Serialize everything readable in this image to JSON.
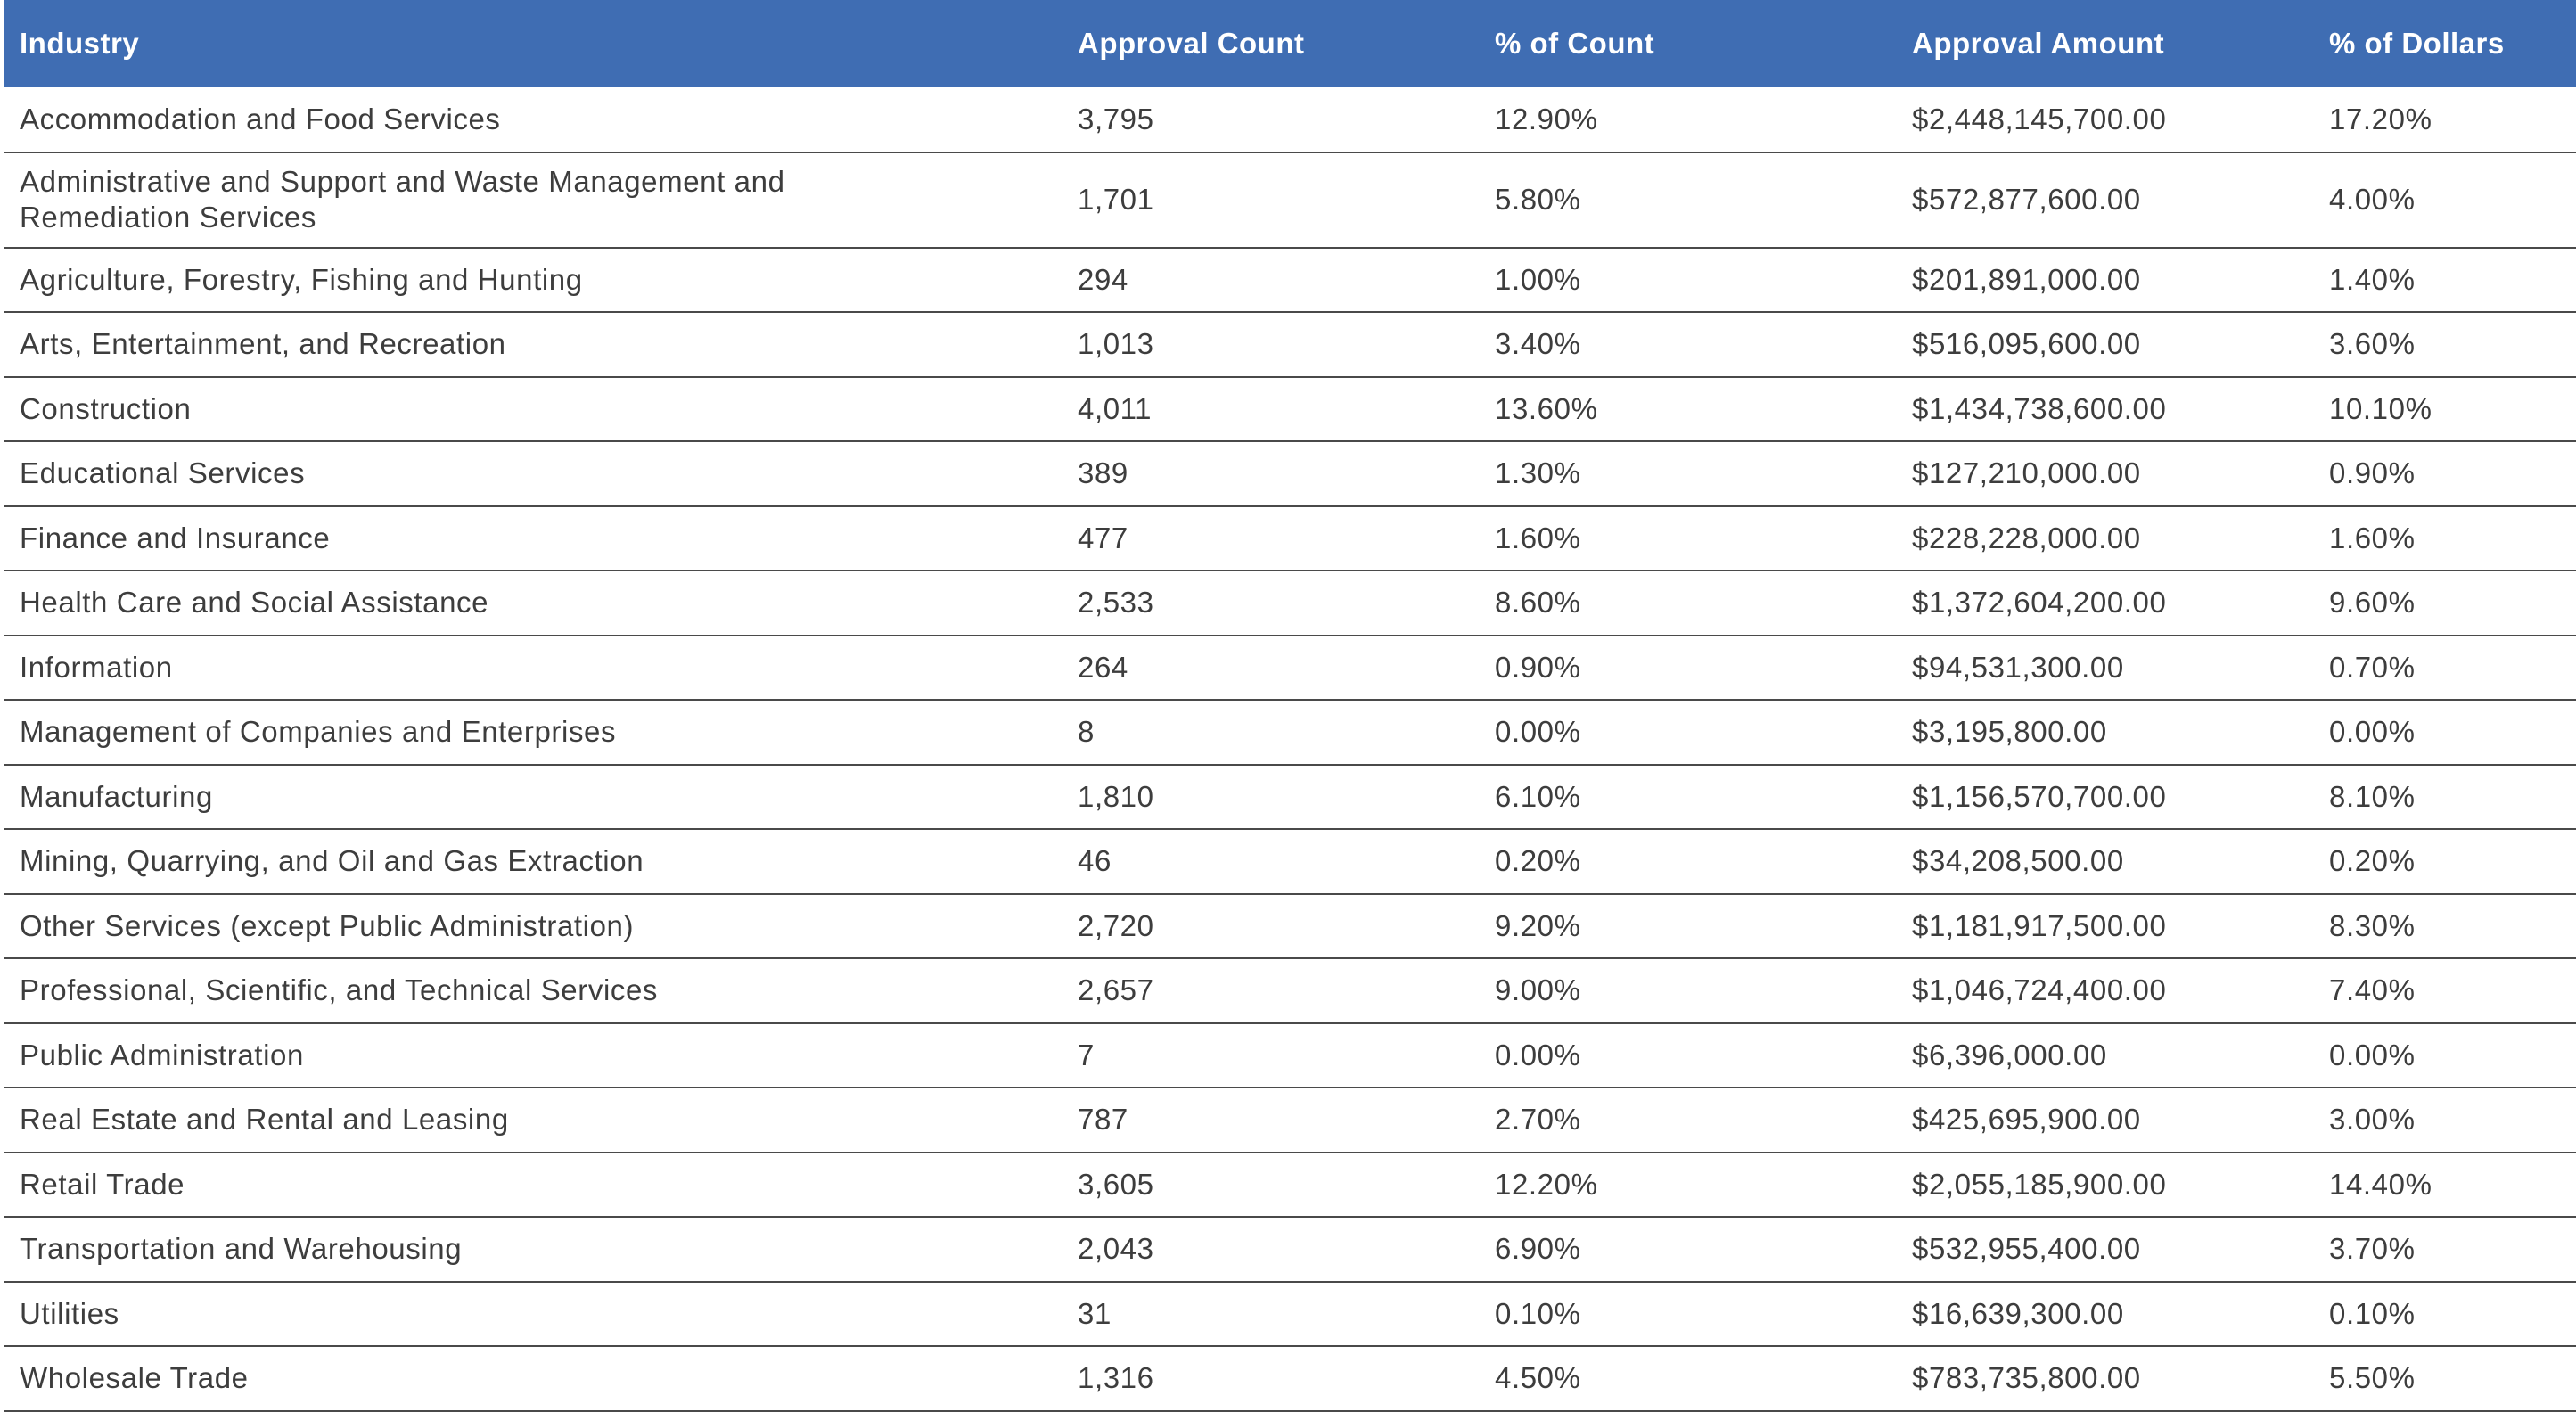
{
  "table": {
    "headers": {
      "industry": "Industry",
      "approval_count": "Approval Count",
      "pct_count": "% of Count",
      "approval_amount": "Approval Amount",
      "pct_dollars": "% of Dollars"
    },
    "header_color": "#3f6db3",
    "rows": [
      {
        "industry": "Accommodation and Food Services",
        "approval_count": "3,795",
        "pct_count": "12.90%",
        "approval_amount": "$2,448,145,700.00",
        "pct_dollars": "17.20%"
      },
      {
        "industry": "Administrative and Support and Waste Management and Remediation Services",
        "approval_count": "1,701",
        "pct_count": "5.80%",
        "approval_amount": "$572,877,600.00",
        "pct_dollars": "4.00%"
      },
      {
        "industry": "Agriculture, Forestry, Fishing and Hunting",
        "approval_count": "294",
        "pct_count": "1.00%",
        "approval_amount": "$201,891,000.00",
        "pct_dollars": "1.40%"
      },
      {
        "industry": "Arts, Entertainment, and Recreation",
        "approval_count": "1,013",
        "pct_count": "3.40%",
        "approval_amount": "$516,095,600.00",
        "pct_dollars": "3.60%"
      },
      {
        "industry": "Construction",
        "approval_count": "4,011",
        "pct_count": "13.60%",
        "approval_amount": "$1,434,738,600.00",
        "pct_dollars": "10.10%"
      },
      {
        "industry": "Educational Services",
        "approval_count": "389",
        "pct_count": "1.30%",
        "approval_amount": "$127,210,000.00",
        "pct_dollars": "0.90%"
      },
      {
        "industry": "Finance and Insurance",
        "approval_count": "477",
        "pct_count": "1.60%",
        "approval_amount": "$228,228,000.00",
        "pct_dollars": "1.60%"
      },
      {
        "industry": "Health Care and Social Assistance",
        "approval_count": "2,533",
        "pct_count": "8.60%",
        "approval_amount": "$1,372,604,200.00",
        "pct_dollars": "9.60%"
      },
      {
        "industry": "Information",
        "approval_count": "264",
        "pct_count": "0.90%",
        "approval_amount": "$94,531,300.00",
        "pct_dollars": "0.70%"
      },
      {
        "industry": "Management of Companies and Enterprises",
        "approval_count": "8",
        "pct_count": "0.00%",
        "approval_amount": "$3,195,800.00",
        "pct_dollars": "0.00%"
      },
      {
        "industry": "Manufacturing",
        "approval_count": "1,810",
        "pct_count": "6.10%",
        "approval_amount": "$1,156,570,700.00",
        "pct_dollars": "8.10%"
      },
      {
        "industry": "Mining, Quarrying, and Oil and Gas Extraction",
        "approval_count": "46",
        "pct_count": "0.20%",
        "approval_amount": "$34,208,500.00",
        "pct_dollars": "0.20%"
      },
      {
        "industry": "Other Services (except Public Administration)",
        "approval_count": "2,720",
        "pct_count": "9.20%",
        "approval_amount": "$1,181,917,500.00",
        "pct_dollars": "8.30%"
      },
      {
        "industry": "Professional, Scientific, and Technical Services",
        "approval_count": "2,657",
        "pct_count": "9.00%",
        "approval_amount": "$1,046,724,400.00",
        "pct_dollars": "7.40%"
      },
      {
        "industry": "Public Administration",
        "approval_count": "7",
        "pct_count": "0.00%",
        "approval_amount": "$6,396,000.00",
        "pct_dollars": "0.00%"
      },
      {
        "industry": "Real Estate and Rental and Leasing",
        "approval_count": "787",
        "pct_count": "2.70%",
        "approval_amount": "$425,695,900.00",
        "pct_dollars": "3.00%"
      },
      {
        "industry": "Retail Trade",
        "approval_count": "3,605",
        "pct_count": "12.20%",
        "approval_amount": "$2,055,185,900.00",
        "pct_dollars": "14.40%"
      },
      {
        "industry": "Transportation and Warehousing",
        "approval_count": "2,043",
        "pct_count": "6.90%",
        "approval_amount": "$532,955,400.00",
        "pct_dollars": "3.70%"
      },
      {
        "industry": "Utilities",
        "approval_count": "31",
        "pct_count": "0.10%",
        "approval_amount": "$16,639,300.00",
        "pct_dollars": "0.10%"
      },
      {
        "industry": "Wholesale Trade",
        "approval_count": "1,316",
        "pct_count": "4.50%",
        "approval_amount": "$783,735,800.00",
        "pct_dollars": "5.50%"
      }
    ]
  }
}
